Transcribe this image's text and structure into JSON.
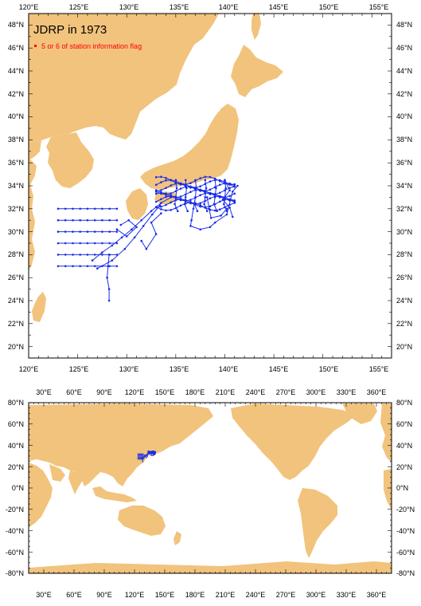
{
  "map_title": "JDRP in 1973",
  "legend_label": "5 or 6 of station information flag",
  "colors": {
    "land": "#f2c37c",
    "ocean": "#ffffff",
    "track": "#1a2de6",
    "legend_marker": "#ff0000",
    "title_text": "#000000",
    "legend_text": "#ff0000"
  },
  "regional_map": {
    "lon_labels": [
      "120°E",
      "125°E",
      "130°E",
      "135°E",
      "140°E",
      "145°E",
      "150°E",
      "155°E"
    ],
    "lat_labels": [
      "20°N",
      "22°N",
      "24°N",
      "26°N",
      "28°N",
      "30°N",
      "32°N",
      "34°N",
      "36°N",
      "38°N",
      "40°N",
      "42°N",
      "44°N",
      "46°N",
      "48°N"
    ]
  },
  "global_map": {
    "lon_labels": [
      "30°E",
      "60°E",
      "90°E",
      "120°E",
      "150°E",
      "180°E",
      "210°E",
      "240°E",
      "270°E",
      "300°E",
      "330°E",
      "360°E"
    ],
    "lat_labels": [
      "80°N",
      "60°N",
      "40°N",
      "20°N",
      "0°N",
      "-20°N",
      "-40°N",
      "-60°N",
      "-80°N"
    ]
  }
}
